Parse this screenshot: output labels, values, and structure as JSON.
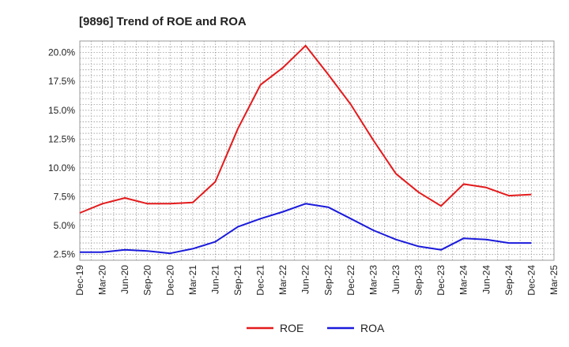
{
  "chart_data": {
    "type": "line",
    "title": "[9896]  Trend of ROE and ROA",
    "xlabel": "",
    "ylabel": "",
    "ylim": [
      2.0,
      21.0
    ],
    "y_ticks": [
      2.5,
      5.0,
      7.5,
      10.0,
      12.5,
      15.0,
      17.5,
      20.0
    ],
    "y_tick_labels": [
      "2.5%",
      "5.0%",
      "7.5%",
      "10.0%",
      "12.5%",
      "15.0%",
      "17.5%",
      "20.0%"
    ],
    "grid": true,
    "legend_position": "bottom",
    "categories": [
      "Dec-19",
      "Mar-20",
      "Jun-20",
      "Sep-20",
      "Dec-20",
      "Mar-21",
      "Jun-21",
      "Sep-21",
      "Dec-21",
      "Mar-22",
      "Jun-22",
      "Sep-22",
      "Dec-22",
      "Mar-23",
      "Jun-23",
      "Sep-23",
      "Dec-23",
      "Mar-24",
      "Jun-24",
      "Sep-24",
      "Dec-24",
      "Mar-25"
    ],
    "series": [
      {
        "name": "ROE",
        "color": "#e41a1c",
        "values": [
          6.1,
          6.9,
          7.4,
          6.9,
          6.9,
          7.0,
          8.8,
          13.4,
          17.2,
          18.7,
          20.6,
          18.1,
          15.5,
          12.4,
          9.5,
          7.9,
          6.7,
          8.6,
          8.3,
          7.6,
          7.7,
          null
        ]
      },
      {
        "name": "ROA",
        "color": "#1a1adc",
        "values": [
          2.7,
          2.7,
          2.9,
          2.8,
          2.6,
          3.0,
          3.6,
          4.9,
          5.6,
          6.2,
          6.9,
          6.6,
          5.6,
          4.6,
          3.8,
          3.2,
          2.9,
          3.9,
          3.8,
          3.5,
          3.5,
          null
        ]
      }
    ]
  }
}
